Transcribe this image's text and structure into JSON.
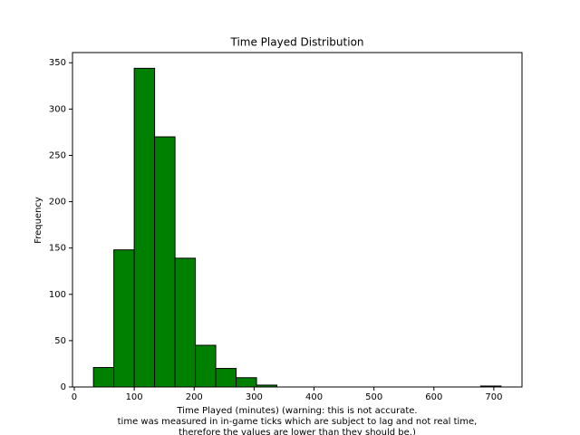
{
  "chart_data": {
    "type": "histogram",
    "title": "Time Played Distribution",
    "xlabel": [
      "Time Played (minutes) (warning: this is not accurate.",
      "time was measured in in-game ticks which are subject to lag and not real time,",
      "therefore the values are lower than they should be.)"
    ],
    "ylabel": "Frequency",
    "bins": [
      32,
      66,
      100,
      134,
      168,
      202,
      236,
      270,
      304,
      338,
      372,
      406,
      440,
      474,
      508,
      542,
      576,
      610,
      644,
      678,
      712
    ],
    "counts": [
      21,
      148,
      344,
      270,
      139,
      45,
      20,
      10,
      2,
      0,
      0,
      0,
      0,
      0,
      0,
      0,
      0,
      0,
      0,
      1
    ],
    "color": "#008000",
    "edgecolor": "#000000",
    "xlim": [
      -3,
      747
    ],
    "ylim": [
      0,
      361
    ],
    "xticks": [
      0,
      100,
      200,
      300,
      400,
      500,
      600,
      700
    ],
    "yticks": [
      0,
      50,
      100,
      150,
      200,
      250,
      300,
      350
    ]
  }
}
